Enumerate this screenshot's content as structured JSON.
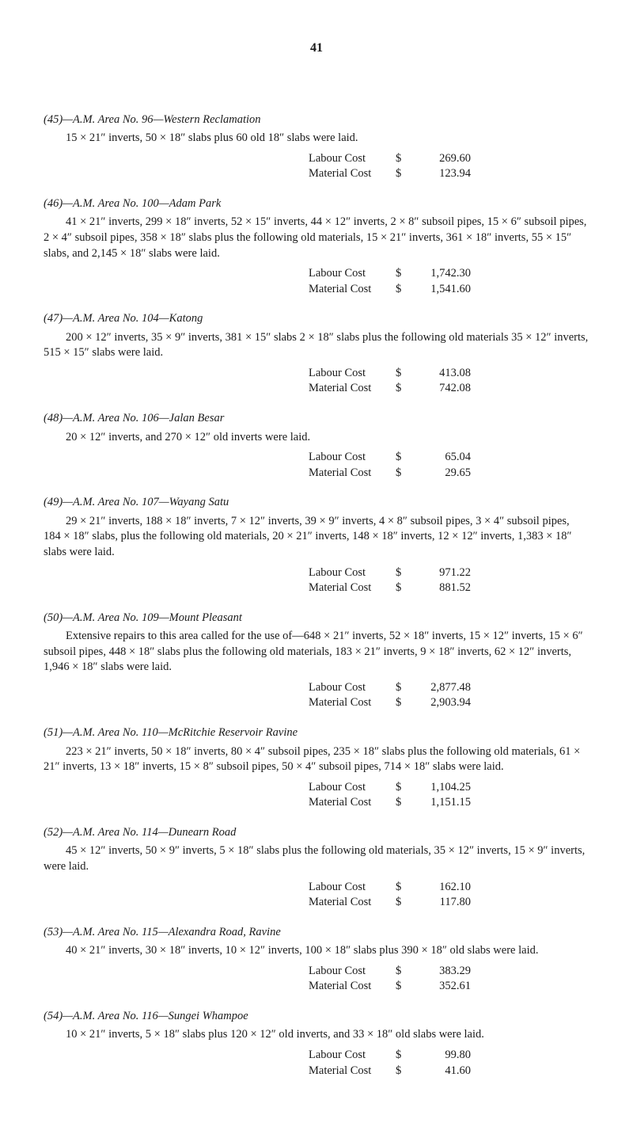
{
  "page_number": "41",
  "sections": [
    {
      "heading": "(45)—A.M. Area No. 96—Western Reclamation",
      "body": "15 × 21″ inverts, 50 × 18″ slabs plus 60 old 18″ slabs were laid.",
      "labour": "269.60",
      "material": "123.94"
    },
    {
      "heading": "(46)—A.M. Area No. 100—Adam Park",
      "body": "41 × 21″ inverts, 299 × 18″ inverts, 52 × 15″ inverts, 44 × 12″ inverts, 2 × 8″ subsoil pipes, 15 × 6″ subsoil pipes, 2 × 4″ subsoil pipes, 358 × 18″ slabs plus the following old materials, 15 × 21″ inverts, 361 × 18″ inverts, 55 × 15″ slabs, and 2,145 × 18″ slabs were laid.",
      "labour": "1,742.30",
      "material": "1,541.60"
    },
    {
      "heading": "(47)—A.M. Area No. 104—Katong",
      "body": "200 × 12″ inverts, 35 × 9″ inverts, 381 × 15″ slabs 2 × 18″ slabs plus the following old materials 35 × 12″ inverts, 515 × 15″ slabs were laid.",
      "labour": "413.08",
      "material": "742.08"
    },
    {
      "heading": "(48)—A.M. Area No. 106—Jalan Besar",
      "body": "20 × 12″ inverts, and 270 × 12″ old inverts were laid.",
      "labour": "65.04",
      "material": "29.65"
    },
    {
      "heading": "(49)—A.M. Area No. 107—Wayang Satu",
      "body": "29 × 21″ inverts, 188 × 18″ inverts, 7 × 12″ inverts, 39 × 9″ inverts, 4 × 8″ subsoil pipes, 3 × 4″ subsoil pipes, 184 × 18″ slabs, plus the following old materials, 20 × 21″ inverts, 148 × 18″ inverts, 12 × 12″ inverts, 1,383 × 18″ slabs were laid.",
      "labour": "971.22",
      "material": "881.52"
    },
    {
      "heading": "(50)—A.M. Area No. 109—Mount Pleasant",
      "body": "Extensive repairs to this area called for the use of—648 × 21″ inverts, 52 × 18″ inverts, 15 × 12″ inverts, 15 × 6″ subsoil pipes, 448 × 18″ slabs plus the following old materials, 183 × 21″ inverts, 9 × 18″ inverts, 62 × 12″ inverts, 1,946 × 18″ slabs were laid.",
      "labour": "2,877.48",
      "material": "2,903.94"
    },
    {
      "heading": "(51)—A.M. Area No. 110—McRitchie Reservoir Ravine",
      "body": "223 × 21″ inverts, 50 × 18″ inverts, 80 × 4″ subsoil pipes, 235 × 18″ slabs plus the following old materials, 61 × 21″ inverts, 13 × 18″ inverts, 15 × 8″ subsoil pipes, 50 × 4″ subsoil pipes, 714 × 18″ slabs were laid.",
      "labour": "1,104.25",
      "material": "1,151.15"
    },
    {
      "heading": "(52)—A.M. Area No. 114—Dunearn Road",
      "body": "45 × 12″ inverts, 50 × 9″ inverts, 5 × 18″ slabs plus the following old materials, 35 × 12″ inverts, 15 × 9″ inverts, were laid.",
      "labour": "162.10",
      "material": "117.80"
    },
    {
      "heading": "(53)—A.M. Area No. 115—Alexandra Road, Ravine",
      "body": "40 × 21″ inverts, 30 × 18″ inverts, 10 × 12″ inverts, 100 × 18″ slabs plus 390 × 18″ old slabs were laid.",
      "labour": "383.29",
      "material": "352.61"
    },
    {
      "heading": "(54)—A.M. Area No. 116—Sungei Whampoe",
      "body": "10 × 21″ inverts, 5 × 18″ slabs plus 120 × 12″ old inverts, and 33 × 18″ old slabs were laid.",
      "labour": "99.80",
      "material": "41.60"
    }
  ],
  "labels": {
    "labour": "Labour Cost",
    "material": "Material Cost",
    "currency": "$"
  }
}
